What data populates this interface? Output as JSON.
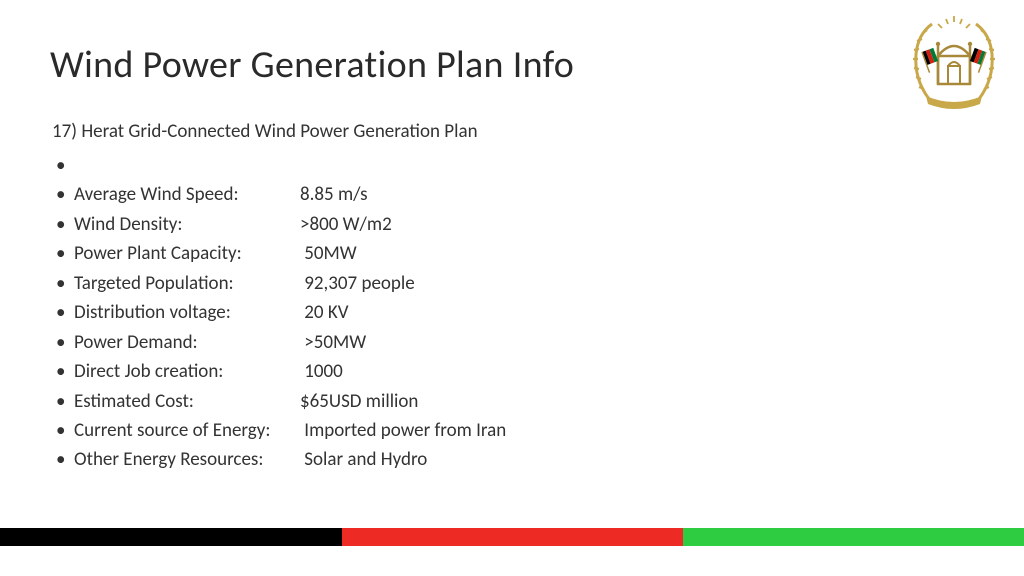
{
  "title": "Wind Power Generation Plan Info",
  "subtitle": "17)  Herat Grid-Connected Wind Power Generation Plan",
  "specs": [
    {
      "label": "",
      "value": ""
    },
    {
      "label": "Average Wind Speed:",
      "value": "8.85 m/s"
    },
    {
      "label": "Wind Density:",
      "value": ">800 W/m2"
    },
    {
      "label": "Power Plant Capacity:",
      "value": " 50MW"
    },
    {
      "label": "Targeted Population:",
      "value": " 92,307 people"
    },
    {
      "label": "Distribution voltage:",
      "value": " 20 KV"
    },
    {
      "label": "Power Demand:",
      "value": " >50MW"
    },
    {
      "label": "Direct Job creation:",
      "value": " 1000"
    },
    {
      "label": "Estimated Cost:",
      "value": "$65USD million"
    },
    {
      "label": "Current source of Energy:",
      "value": "  Imported power from Iran"
    },
    {
      "label": "Other Energy Resources:",
      "value": "  Solar and Hydro"
    }
  ],
  "footer_colors": {
    "black": "#000000",
    "red": "#ee2a24",
    "green": "#2ecc40"
  },
  "footer_widths": {
    "black": 342,
    "red": 341,
    "green": 341
  },
  "emblem_colors": {
    "gold": "#c9a84a",
    "gold_dark": "#a8893a",
    "flag_black": "#000000",
    "flag_red": "#d32011",
    "flag_green": "#007a36"
  }
}
